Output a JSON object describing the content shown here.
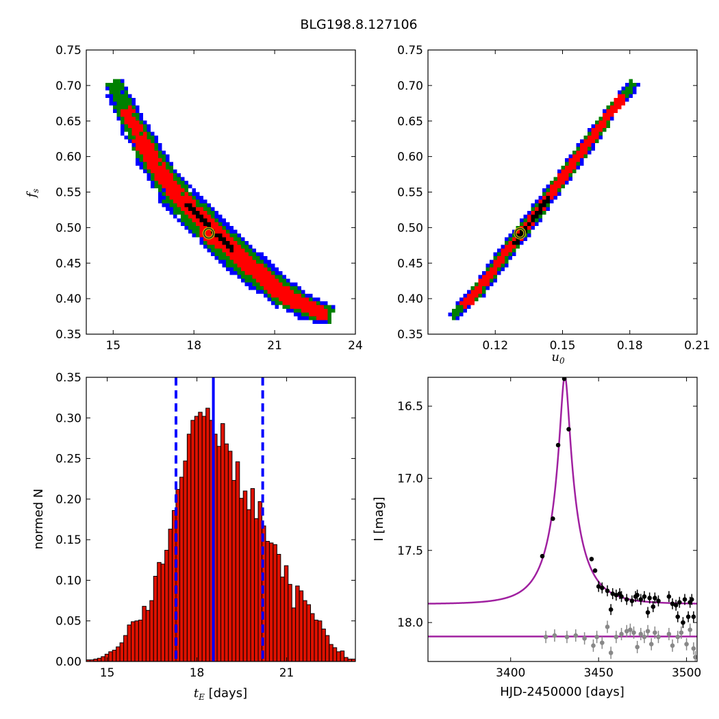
{
  "title": "BLG198.8.127106",
  "colors": {
    "sigma1": "#ff0000",
    "sigma2": "#008000",
    "sigma3": "#0000ff",
    "best": "#000000",
    "marker_edge": "#bfbf00",
    "hist_fill": "#dd1100",
    "model": "#a020a0",
    "data_main": "#000000",
    "data_secondary": "#888888",
    "vline": "#0000ff"
  },
  "chart_data": [
    {
      "id": "fs_vs_tE",
      "type": "heatmap",
      "xlabel": "",
      "ylabel_var": "f",
      "ylabel_sub": "s",
      "xlim": [
        14,
        24
      ],
      "ylim": [
        0.35,
        0.75
      ],
      "xticks": [
        "15",
        "18",
        "21",
        "24"
      ],
      "yticks": [
        "0.35",
        "0.40",
        "0.45",
        "0.50",
        "0.55",
        "0.60",
        "0.65",
        "0.70",
        "0.75"
      ],
      "ridge": {
        "x": [
          14.9,
          15.6,
          16.2,
          16.9,
          17.7,
          18.5,
          19.3,
          20.2,
          21.0,
          21.8,
          22.6,
          23.0
        ],
        "y": [
          0.705,
          0.65,
          0.61,
          0.565,
          0.53,
          0.5,
          0.47,
          0.44,
          0.415,
          0.395,
          0.382,
          0.378
        ]
      },
      "best_point": {
        "x": 18.55,
        "y": 0.492
      }
    },
    {
      "id": "fs_vs_u0",
      "type": "heatmap",
      "xlabel_var": "u",
      "xlabel_sub": "0",
      "ylabel": "",
      "xlim": [
        0.09,
        0.21
      ],
      "ylim": [
        0.35,
        0.75
      ],
      "xticks": [
        "0.12",
        "0.15",
        "0.18",
        "0.21"
      ],
      "yticks": [
        "0.35",
        "0.40",
        "0.45",
        "0.50",
        "0.55",
        "0.60",
        "0.65",
        "0.70",
        "0.75"
      ],
      "ridge": {
        "x": [
          0.101,
          0.108,
          0.116,
          0.124,
          0.131,
          0.139,
          0.147,
          0.155,
          0.163,
          0.171,
          0.181
        ],
        "y": [
          0.378,
          0.4,
          0.43,
          0.465,
          0.492,
          0.525,
          0.56,
          0.595,
          0.63,
          0.665,
          0.705
        ]
      },
      "best_point": {
        "x": 0.131,
        "y": 0.492
      }
    },
    {
      "id": "tE_hist",
      "type": "bar",
      "xlabel_var": "t",
      "xlabel_sub": "E",
      "xlabel_rest": " [days]",
      "ylabel": "normed N",
      "xlim": [
        14.3,
        23.3
      ],
      "ylim": [
        0,
        0.35
      ],
      "xticks": [
        "15",
        "18",
        "21"
      ],
      "yticks": [
        "0.00",
        "0.05",
        "0.10",
        "0.15",
        "0.20",
        "0.25",
        "0.30",
        "0.35"
      ],
      "bin_start": 14.3,
      "bin_width": 0.125,
      "values": [
        0.002,
        0.002,
        0.003,
        0.004,
        0.006,
        0.009,
        0.012,
        0.014,
        0.018,
        0.023,
        0.032,
        0.045,
        0.049,
        0.05,
        0.051,
        0.068,
        0.063,
        0.075,
        0.105,
        0.122,
        0.12,
        0.137,
        0.163,
        0.186,
        0.212,
        0.227,
        0.247,
        0.28,
        0.297,
        0.302,
        0.307,
        0.302,
        0.312,
        0.297,
        0.28,
        0.265,
        0.293,
        0.268,
        0.259,
        0.223,
        0.246,
        0.201,
        0.21,
        0.187,
        0.213,
        0.176,
        0.197,
        0.167,
        0.148,
        0.146,
        0.144,
        0.132,
        0.104,
        0.118,
        0.095,
        0.066,
        0.093,
        0.087,
        0.075,
        0.07,
        0.059,
        0.051,
        0.05,
        0.04,
        0.032,
        0.021,
        0.017,
        0.012,
        0.013,
        0.005,
        0.003,
        0.003
      ],
      "vline_best": 18.55,
      "vlines_dashed": [
        17.3,
        20.2
      ]
    },
    {
      "id": "lightcurve",
      "type": "scatter",
      "xlabel": "HJD-2450000 [days]",
      "ylabel": "I [mag]",
      "xlim": [
        3353,
        3506
      ],
      "ylim": [
        18.27,
        16.3
      ],
      "xticks": [
        "3400",
        "3450",
        "3500"
      ],
      "yticks": [
        "16.5",
        "17.0",
        "17.5",
        "18.0"
      ],
      "model": {
        "t0": 3430.8,
        "tE": 18.55,
        "u0": 0.131,
        "fs": 0.492,
        "I_base": 17.872,
        "I_flat": 18.097
      },
      "series": [
        {
          "x": [
            3418,
            3424,
            3427,
            3430.5,
            3433,
            3446,
            3448,
            3450,
            3452,
            3455,
            3457,
            3458,
            3460,
            3462,
            3463,
            3466,
            3469,
            3471,
            3472,
            3474,
            3476,
            3478,
            3479,
            3481,
            3482,
            3484,
            3490,
            3492,
            3494,
            3495,
            3496,
            3498,
            3499,
            3501,
            3502,
            3503,
            3504
          ],
          "y": [
            17.54,
            17.28,
            16.77,
            16.31,
            16.66,
            17.56,
            17.64,
            17.75,
            17.76,
            17.78,
            17.91,
            17.8,
            17.81,
            17.8,
            17.82,
            17.84,
            17.85,
            17.82,
            17.81,
            17.84,
            17.82,
            17.93,
            17.83,
            17.89,
            17.83,
            17.85,
            17.82,
            17.87,
            17.88,
            17.96,
            17.86,
            18.0,
            17.84,
            17.96,
            17.86,
            17.84,
            17.96
          ]
        },
        {
          "x": [
            3420,
            3425,
            3432,
            3437,
            3442,
            3447,
            3449,
            3452,
            3455,
            3457,
            3460,
            3463,
            3466,
            3468,
            3470,
            3472,
            3474,
            3476,
            3478,
            3480,
            3482,
            3484,
            3490,
            3492,
            3495,
            3497,
            3500,
            3502,
            3504,
            3505
          ],
          "y": [
            18.1,
            18.09,
            18.1,
            18.09,
            18.11,
            18.16,
            18.1,
            18.14,
            18.03,
            18.21,
            18.1,
            18.08,
            18.06,
            18.05,
            18.07,
            18.17,
            18.08,
            18.1,
            18.06,
            18.15,
            18.07,
            18.1,
            18.08,
            18.16,
            18.1,
            18.07,
            18.15,
            18.05,
            18.18,
            18.24
          ]
        }
      ]
    }
  ]
}
